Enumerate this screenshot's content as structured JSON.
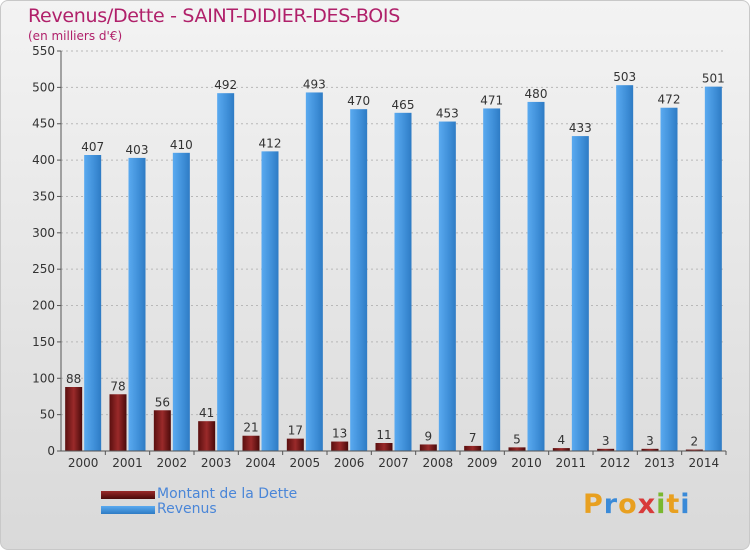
{
  "title": "Revenus/Dette - SAINT-DIDIER-DES-BOIS",
  "subtitle": "(en milliers d'€)",
  "colors": {
    "title": "#b0206a",
    "dette": "#7a1a1a",
    "revenus": "#3f8fd8",
    "legend_text": "#4a86d8"
  },
  "legend": [
    {
      "label": "Montant de la Dette",
      "color": "#7a1a1a"
    },
    {
      "label": "Revenus",
      "color": "#3f8fd8"
    }
  ],
  "logo": {
    "text": "Proxiti"
  },
  "chart_data": {
    "type": "bar",
    "title": "Revenus/Dette - SAINT-DIDIER-DES-BOIS",
    "subtitle": "(en milliers d'€)",
    "xlabel": "",
    "ylabel": "",
    "ylim": [
      0,
      550
    ],
    "yticks": [
      0,
      50,
      100,
      150,
      200,
      250,
      300,
      350,
      400,
      450,
      500,
      550
    ],
    "grid": "horizontal dashed",
    "legend_position": "bottom-left",
    "categories": [
      "2000",
      "2001",
      "2002",
      "2003",
      "2004",
      "2005",
      "2006",
      "2007",
      "2008",
      "2009",
      "2010",
      "2011",
      "2012",
      "2013",
      "2014"
    ],
    "series": [
      {
        "name": "Montant de la Dette",
        "values": [
          88,
          78,
          56,
          41,
          21,
          17,
          13,
          11,
          9,
          7,
          5,
          4,
          3,
          3,
          2
        ]
      },
      {
        "name": "Revenus",
        "values": [
          407,
          403,
          410,
          492,
          412,
          493,
          470,
          465,
          453,
          471,
          480,
          433,
          503,
          472,
          501
        ]
      }
    ]
  }
}
